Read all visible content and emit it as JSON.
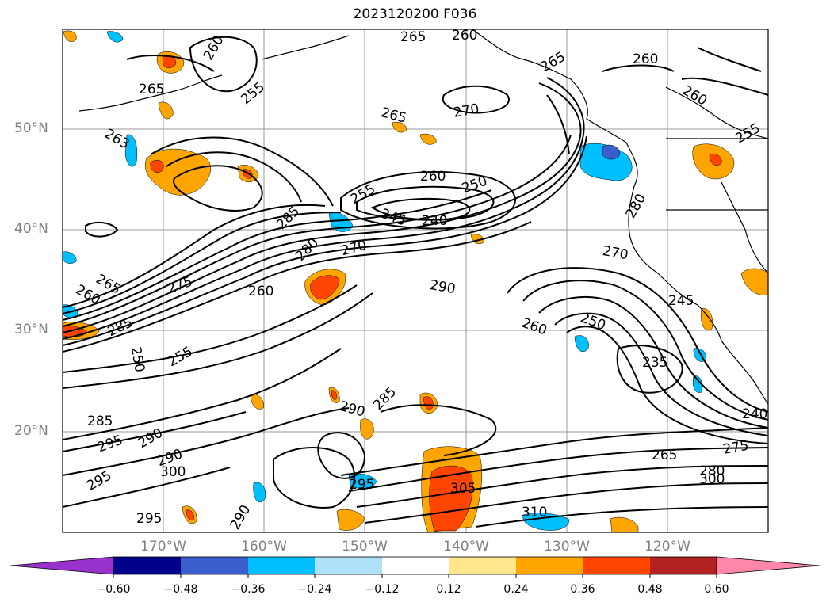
{
  "title": "2023120200 F036",
  "map": {
    "lat_labels": [
      "50°N",
      "40°N",
      "30°N",
      "20°N"
    ],
    "lon_labels": [
      "170°W",
      "160°W",
      "150°W",
      "140°W",
      "130°W",
      "120°W"
    ],
    "contour_labels": [
      "265",
      "260",
      "260",
      "255",
      "265",
      "270",
      "265",
      "260",
      "265",
      "260",
      "255",
      "263",
      "260",
      "255",
      "250",
      "245",
      "240",
      "285",
      "280",
      "270",
      "280",
      "270",
      "275",
      "265",
      "260",
      "260",
      "290",
      "285",
      "250",
      "245",
      "250",
      "260",
      "255",
      "235",
      "285",
      "290",
      "295",
      "290",
      "285",
      "290",
      "300",
      "295",
      "295",
      "295",
      "290",
      "305",
      "310",
      "265",
      "275",
      "280",
      "300",
      "240"
    ],
    "colors": {
      "land_outline": "#000000",
      "grid": "#999999"
    }
  },
  "colorbar": {
    "ticks": [
      "−0.60",
      "−0.48",
      "−0.36",
      "−0.24",
      "−0.12",
      "0.12",
      "0.24",
      "0.36",
      "0.48",
      "0.60"
    ],
    "colors": [
      "#9932cc",
      "#00008b",
      "#3a5fcd",
      "#00bfff",
      "#aee2f8",
      "#ffffff",
      "#ffe68c",
      "#ffa500",
      "#ff4500",
      "#b22222",
      "#ff88aa"
    ]
  }
}
